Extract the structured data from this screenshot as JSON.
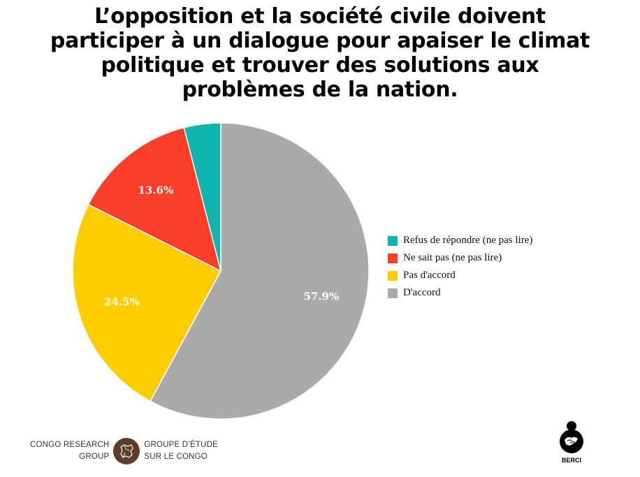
{
  "title_lines": [
    "L’opposition et la société civile doivent",
    "participer à un dialogue pour apaiser le climat",
    "politique et trouver des solutions aux",
    "problèmes de la nation."
  ],
  "chart_data": {
    "type": "pie",
    "title": "L’opposition et la société civile doivent participer à un dialogue pour apaiser le climat politique et trouver des solutions aux problèmes de la nation.",
    "legend_position": "right",
    "slices": [
      {
        "label": "D'accord",
        "value": 57.9,
        "value_label": "57.9%",
        "color": "#aaaaaa"
      },
      {
        "label": "Pas d'accord",
        "value": 24.5,
        "value_label": "24.5%",
        "color": "#ffcc00"
      },
      {
        "label": "Ne sait pas (ne pas lire)",
        "value": 13.6,
        "value_label": "13.6%",
        "color": "#fa3e29"
      },
      {
        "label": "Refus de répondre (ne pas lire)",
        "value": 4.0,
        "value_label": "",
        "color": "#11b3ad"
      }
    ],
    "legend": [
      {
        "label": "Refus de répondre (ne pas lire)",
        "color": "#11b3ad"
      },
      {
        "label": "Ne sait pas (ne pas lire)",
        "color": "#fa3e29"
      },
      {
        "label": "Pas d'accord",
        "color": "#ffcc00"
      },
      {
        "label": "D'accord",
        "color": "#aaaaaa"
      }
    ]
  },
  "footer": {
    "left_org_line1": "CONGO RESEARCH",
    "left_org_line2": "GROUP",
    "right_org_line1": "GROUPE D’ÉTUDE",
    "right_org_line2": "SUR LE CONGO",
    "berci_label": "BERCI",
    "emblem_color": "#5a3e2b"
  }
}
